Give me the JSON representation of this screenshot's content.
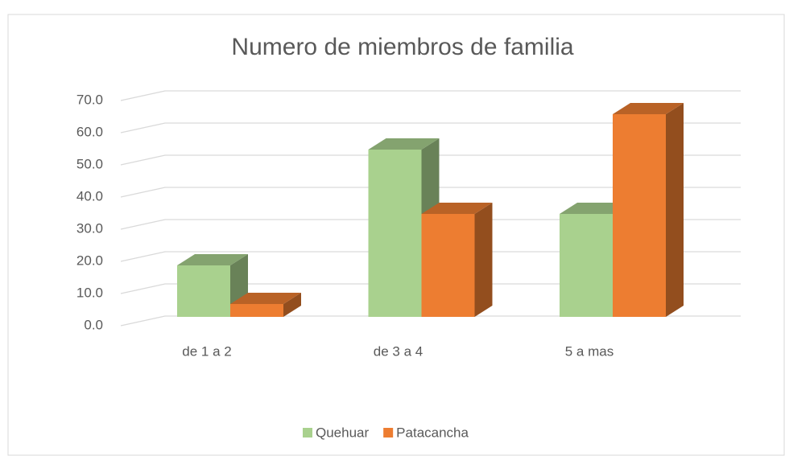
{
  "chart_data": {
    "type": "bar3d",
    "title": "Numero de miembros de familia",
    "categories": [
      "de 1 a 2",
      "de 3 a 4",
      "5 a mas"
    ],
    "series": [
      {
        "name": "Quehuar",
        "color": "#a9d18e",
        "values": [
          16,
          52,
          32
        ]
      },
      {
        "name": "Patacancha",
        "color": "#ed7d31",
        "values": [
          4,
          32,
          63
        ]
      }
    ],
    "ylim": [
      0,
      70
    ],
    "yticks": [
      {
        "value": 0,
        "label": "0.0"
      },
      {
        "value": 10,
        "label": "10.0"
      },
      {
        "value": 20,
        "label": "20.0"
      },
      {
        "value": 30,
        "label": "30.0"
      },
      {
        "value": 40,
        "label": "40.0"
      },
      {
        "value": 50,
        "label": "50.0"
      },
      {
        "value": 60,
        "label": "60.0"
      },
      {
        "value": 70,
        "label": "70.0"
      }
    ],
    "grid": true,
    "legend": "bottom"
  }
}
